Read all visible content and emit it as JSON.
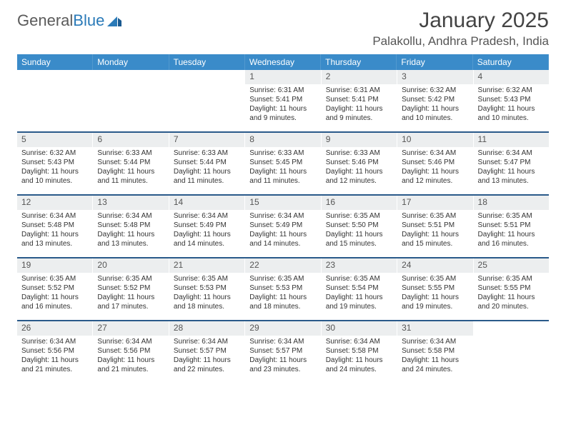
{
  "brand": {
    "part1": "General",
    "part2": "Blue"
  },
  "title": "January 2025",
  "location": "Palakollu, Andhra Pradesh, India",
  "style": {
    "header_bg": "#3a8bc9",
    "header_fg": "#ffffff",
    "date_bg": "#eceeef",
    "week_border": "#2a5a8a",
    "body_font_size": 10,
    "title_font_size": 30,
    "location_font_size": 17
  },
  "day_names": [
    "Sunday",
    "Monday",
    "Tuesday",
    "Wednesday",
    "Thursday",
    "Friday",
    "Saturday"
  ],
  "weeks": [
    [
      null,
      null,
      null,
      {
        "d": "1",
        "sr": "6:31 AM",
        "ss": "5:41 PM",
        "dl": "11 hours and 9 minutes."
      },
      {
        "d": "2",
        "sr": "6:31 AM",
        "ss": "5:41 PM",
        "dl": "11 hours and 9 minutes."
      },
      {
        "d": "3",
        "sr": "6:32 AM",
        "ss": "5:42 PM",
        "dl": "11 hours and 10 minutes."
      },
      {
        "d": "4",
        "sr": "6:32 AM",
        "ss": "5:43 PM",
        "dl": "11 hours and 10 minutes."
      }
    ],
    [
      {
        "d": "5",
        "sr": "6:32 AM",
        "ss": "5:43 PM",
        "dl": "11 hours and 10 minutes."
      },
      {
        "d": "6",
        "sr": "6:33 AM",
        "ss": "5:44 PM",
        "dl": "11 hours and 11 minutes."
      },
      {
        "d": "7",
        "sr": "6:33 AM",
        "ss": "5:44 PM",
        "dl": "11 hours and 11 minutes."
      },
      {
        "d": "8",
        "sr": "6:33 AM",
        "ss": "5:45 PM",
        "dl": "11 hours and 11 minutes."
      },
      {
        "d": "9",
        "sr": "6:33 AM",
        "ss": "5:46 PM",
        "dl": "11 hours and 12 minutes."
      },
      {
        "d": "10",
        "sr": "6:34 AM",
        "ss": "5:46 PM",
        "dl": "11 hours and 12 minutes."
      },
      {
        "d": "11",
        "sr": "6:34 AM",
        "ss": "5:47 PM",
        "dl": "11 hours and 13 minutes."
      }
    ],
    [
      {
        "d": "12",
        "sr": "6:34 AM",
        "ss": "5:48 PM",
        "dl": "11 hours and 13 minutes."
      },
      {
        "d": "13",
        "sr": "6:34 AM",
        "ss": "5:48 PM",
        "dl": "11 hours and 13 minutes."
      },
      {
        "d": "14",
        "sr": "6:34 AM",
        "ss": "5:49 PM",
        "dl": "11 hours and 14 minutes."
      },
      {
        "d": "15",
        "sr": "6:34 AM",
        "ss": "5:49 PM",
        "dl": "11 hours and 14 minutes."
      },
      {
        "d": "16",
        "sr": "6:35 AM",
        "ss": "5:50 PM",
        "dl": "11 hours and 15 minutes."
      },
      {
        "d": "17",
        "sr": "6:35 AM",
        "ss": "5:51 PM",
        "dl": "11 hours and 15 minutes."
      },
      {
        "d": "18",
        "sr": "6:35 AM",
        "ss": "5:51 PM",
        "dl": "11 hours and 16 minutes."
      }
    ],
    [
      {
        "d": "19",
        "sr": "6:35 AM",
        "ss": "5:52 PM",
        "dl": "11 hours and 16 minutes."
      },
      {
        "d": "20",
        "sr": "6:35 AM",
        "ss": "5:52 PM",
        "dl": "11 hours and 17 minutes."
      },
      {
        "d": "21",
        "sr": "6:35 AM",
        "ss": "5:53 PM",
        "dl": "11 hours and 18 minutes."
      },
      {
        "d": "22",
        "sr": "6:35 AM",
        "ss": "5:53 PM",
        "dl": "11 hours and 18 minutes."
      },
      {
        "d": "23",
        "sr": "6:35 AM",
        "ss": "5:54 PM",
        "dl": "11 hours and 19 minutes."
      },
      {
        "d": "24",
        "sr": "6:35 AM",
        "ss": "5:55 PM",
        "dl": "11 hours and 19 minutes."
      },
      {
        "d": "25",
        "sr": "6:35 AM",
        "ss": "5:55 PM",
        "dl": "11 hours and 20 minutes."
      }
    ],
    [
      {
        "d": "26",
        "sr": "6:34 AM",
        "ss": "5:56 PM",
        "dl": "11 hours and 21 minutes."
      },
      {
        "d": "27",
        "sr": "6:34 AM",
        "ss": "5:56 PM",
        "dl": "11 hours and 21 minutes."
      },
      {
        "d": "28",
        "sr": "6:34 AM",
        "ss": "5:57 PM",
        "dl": "11 hours and 22 minutes."
      },
      {
        "d": "29",
        "sr": "6:34 AM",
        "ss": "5:57 PM",
        "dl": "11 hours and 23 minutes."
      },
      {
        "d": "30",
        "sr": "6:34 AM",
        "ss": "5:58 PM",
        "dl": "11 hours and 24 minutes."
      },
      {
        "d": "31",
        "sr": "6:34 AM",
        "ss": "5:58 PM",
        "dl": "11 hours and 24 minutes."
      },
      null
    ]
  ],
  "labels": {
    "sunrise": "Sunrise:",
    "sunset": "Sunset:",
    "daylight": "Daylight:"
  }
}
